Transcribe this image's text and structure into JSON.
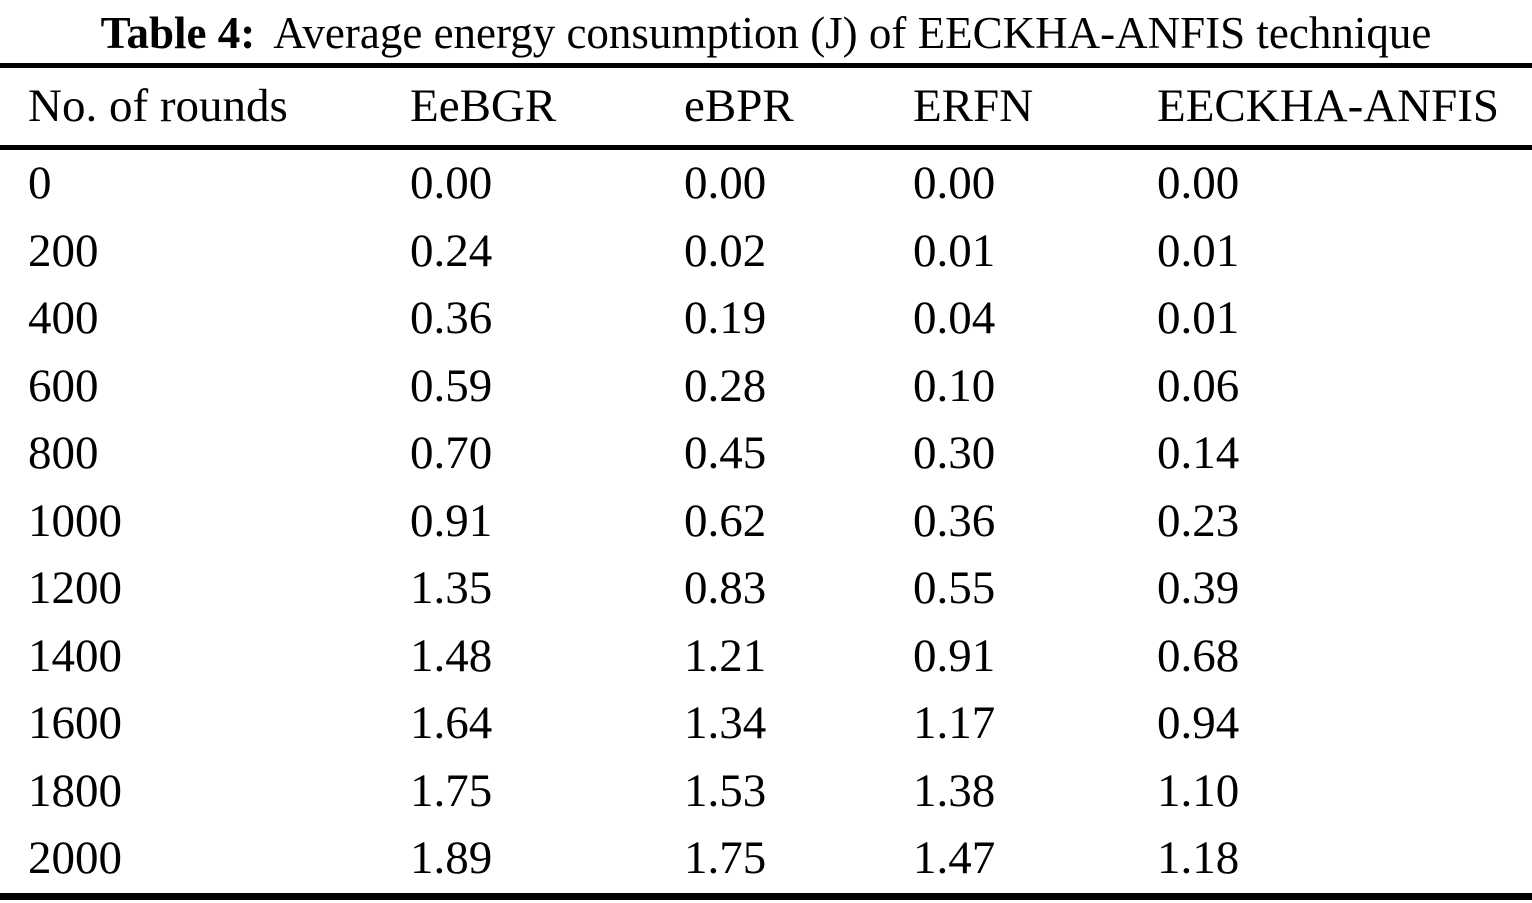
{
  "table": {
    "caption_label": "Table 4:",
    "caption_text": "Average energy consumption (J) of EECKHA-ANFIS technique",
    "columns": [
      "No. of rounds",
      "EeBGR",
      "eBPR",
      "ERFN",
      "EECKHA-ANFIS"
    ],
    "rows": [
      [
        "0",
        "0.00",
        "0.00",
        "0.00",
        "0.00"
      ],
      [
        "200",
        "0.24",
        "0.02",
        "0.01",
        "0.01"
      ],
      [
        "400",
        "0.36",
        "0.19",
        "0.04",
        "0.01"
      ],
      [
        "600",
        "0.59",
        "0.28",
        "0.10",
        "0.06"
      ],
      [
        "800",
        "0.70",
        "0.45",
        "0.30",
        "0.14"
      ],
      [
        "1000",
        "0.91",
        "0.62",
        "0.36",
        "0.23"
      ],
      [
        "1200",
        "1.35",
        "0.83",
        "0.55",
        "0.39"
      ],
      [
        "1400",
        "1.48",
        "1.21",
        "0.91",
        "0.68"
      ],
      [
        "1600",
        "1.64",
        "1.34",
        "1.17",
        "0.94"
      ],
      [
        "1800",
        "1.75",
        "1.53",
        "1.38",
        "1.10"
      ],
      [
        "2000",
        "1.89",
        "1.75",
        "1.47",
        "1.18"
      ]
    ]
  },
  "chart_data": {
    "type": "table",
    "title": "Table 4: Average energy consumption (J) of EECKHA-ANFIS technique",
    "categories": [
      0,
      200,
      400,
      600,
      800,
      1000,
      1200,
      1400,
      1600,
      1800,
      2000
    ],
    "xlabel": "No. of rounds",
    "ylabel": "Average energy consumption (J)",
    "series": [
      {
        "name": "EeBGR",
        "values": [
          0.0,
          0.24,
          0.36,
          0.59,
          0.7,
          0.91,
          1.35,
          1.48,
          1.64,
          1.75,
          1.89
        ]
      },
      {
        "name": "eBPR",
        "values": [
          0.0,
          0.02,
          0.19,
          0.28,
          0.45,
          0.62,
          0.83,
          1.21,
          1.34,
          1.53,
          1.75
        ]
      },
      {
        "name": "ERFN",
        "values": [
          0.0,
          0.01,
          0.04,
          0.1,
          0.3,
          0.36,
          0.55,
          0.91,
          1.17,
          1.38,
          1.47
        ]
      },
      {
        "name": "EECKHA-ANFIS",
        "values": [
          0.0,
          0.01,
          0.01,
          0.06,
          0.14,
          0.23,
          0.39,
          0.68,
          0.94,
          1.1,
          1.18
        ]
      }
    ]
  }
}
